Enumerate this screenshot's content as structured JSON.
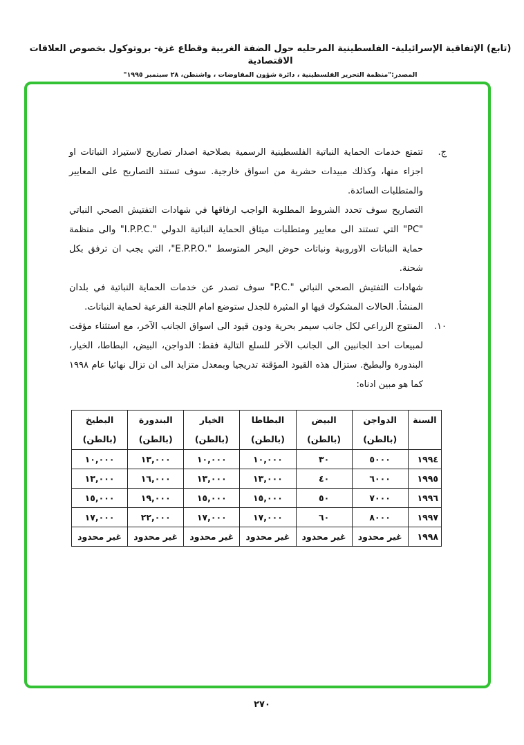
{
  "header": {
    "title": "(تابع) الإتفاقية الإسرائيلية- الفلسطينية المرحليه حول الضفة الغربية وقطاع غزة- بروتوكول بخصوص العلاقات الاقتصادية",
    "source": "المصدر:\"منظمة التحرير الفلسطينية ، دائرة شؤون المفاوضات ، واشنطن، ٢٨ سبتمبر ١٩٩٥\""
  },
  "body": {
    "item_c_marker": "ج.",
    "item_c_p1": "تتمتع خدمات الحماية النباتية الفلسطينية الرسمية بصلاحية اصدار تصاريح لاستيراد النباتات او اجزاء منها، وكذلك مبيدات حشرية من اسواق خارجية. سوف تستند التصاريح على المعايير والمتطلبات السائدة.",
    "item_c_p2": "التصاريح سوف تحدد الشروط المطلوبة الواجب ارفاقها في شهادات التفتيش الصحي النباتي \"PC\" التي تستند الى معايير ومتطلبات ميثاق الحماية النباتية الدولي \".I.P.P.C\" والى منظمة حماية النباتات الاوروبية ونباتات حوض البحر المتوسط \".E.P.P.O\"، التي يجب ان ترفق بكل شحنة.",
    "item_c_p3": "شهادات التفتيش الصحي النباتي \".P.C\" سوف تصدر عن خدمات الحماية النباتية في بلدان المنشأ. الحالات المشكوك فيها او المثيرة للجدل ستوضع امام اللجنة الفرعية لحماية النباتات.",
    "item_10_marker": "١٠.",
    "item_10_p1": "المنتوج الزراعي لكل جانب سيمر بحرية ودون قيود الى اسواق الجانب الآخر، مع استثناء مؤقت لمبيعات احد الجانبين الى الجانب الآخر للسلع التالية فقط: الدواجن، البيض، البطاطا، الخيار، البندورة والبطيخ. ستزال هذه القيود المؤقتة تدريجيا وبمعدل متزايد الى ان تزال نهائيا عام ١٩٩٨ كما هو مبين ادناه:"
  },
  "table": {
    "year_header": "السنة",
    "unit": "(بالطن)",
    "columns": [
      "الدواجن",
      "البيض",
      "البطاطا",
      "الخيار",
      "البندورة",
      "البطيخ"
    ],
    "rows": [
      {
        "year": "١٩٩٤",
        "values": [
          "٥٠٠٠",
          "٣٠",
          "١٠,٠٠٠",
          "١٠,٠٠٠",
          "١٣,٠٠٠",
          "١٠,٠٠٠"
        ]
      },
      {
        "year": "١٩٩٥",
        "values": [
          "٦٠٠٠",
          "٤٠",
          "١٣,٠٠٠",
          "١٣,٠٠٠",
          "١٦,٠٠٠",
          "١٣,٠٠٠"
        ]
      },
      {
        "year": "١٩٩٦",
        "values": [
          "٧٠٠٠",
          "٥٠",
          "١٥,٠٠٠",
          "١٥,٠٠٠",
          "١٩,٠٠٠",
          "١٥,٠٠٠"
        ]
      },
      {
        "year": "١٩٩٧",
        "values": [
          "٨٠٠٠",
          "٦٠",
          "١٧,٠٠٠",
          "١٧,٠٠٠",
          "٢٢,٠٠٠",
          "١٧,٠٠٠"
        ]
      },
      {
        "year": "١٩٩٨",
        "values": [
          "غير محدود",
          "غير محدود",
          "غير محدود",
          "غير محدود",
          "غير محدود",
          "غير محدود"
        ]
      }
    ]
  },
  "footer": {
    "page_number": "٢٧٠"
  },
  "colors": {
    "frame": "#33c233"
  }
}
